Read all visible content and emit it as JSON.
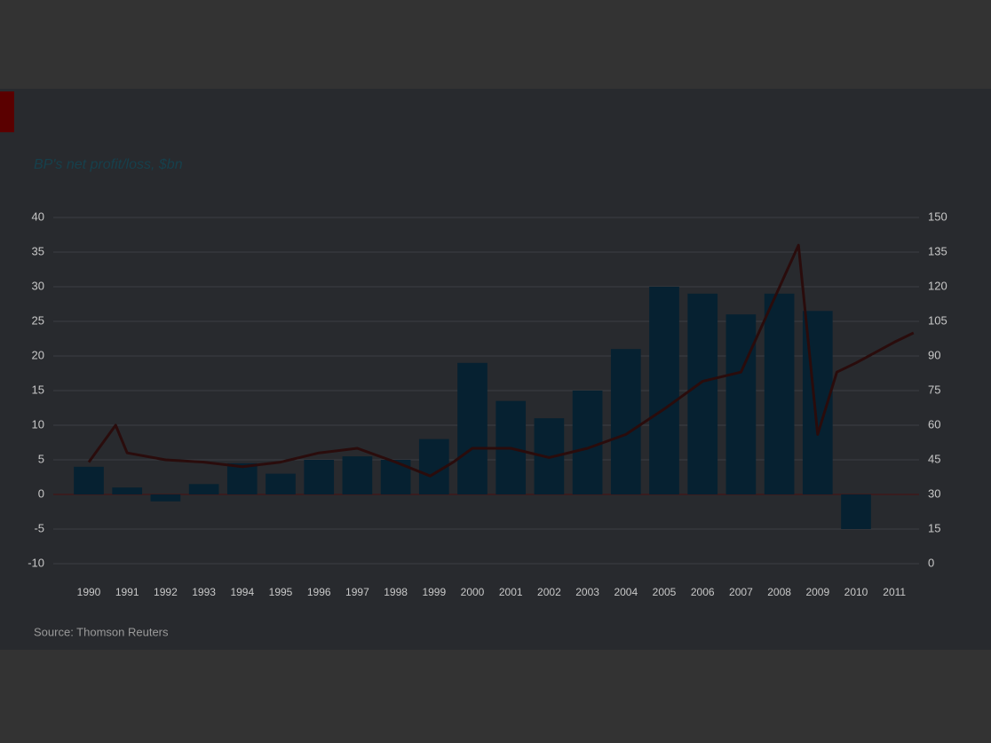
{
  "chart_data": {
    "type": "bar",
    "ylabel": "BP's net profit/loss, $bn",
    "source": "Source: Thomson Reuters",
    "categories": [
      "1990",
      "1991",
      "1992",
      "1993",
      "1994",
      "1995",
      "1996",
      "1997",
      "1998",
      "1999",
      "2000",
      "2001",
      "2002",
      "2003",
      "2004",
      "2005",
      "2006",
      "2007",
      "2008",
      "2009",
      "2010",
      "2011"
    ],
    "ylim": [
      -10,
      40
    ],
    "yticks": [
      -10,
      -5,
      0,
      5,
      10,
      15,
      20,
      25,
      30,
      35,
      40
    ],
    "y2lim": [
      0,
      150
    ],
    "y2ticks": [
      0,
      15,
      30,
      45,
      60,
      75,
      90,
      105,
      120,
      135,
      150
    ],
    "grid": true,
    "series": [
      {
        "type": "bar",
        "color": "#062131",
        "values": [
          4,
          1,
          -1,
          1.5,
          4.5,
          3,
          5,
          5.5,
          5,
          8,
          19,
          13.5,
          11,
          15,
          21,
          30,
          29,
          26,
          29,
          26.5,
          -5,
          null
        ]
      },
      {
        "type": "line",
        "axis": "y2",
        "color": "#2a0c0c",
        "x": [
          1990,
          1990.7,
          1991,
          1992,
          1993,
          1994,
          1995,
          1996,
          1997,
          1998,
          1998.9,
          1999.5,
          2000,
          2001,
          2002,
          2003,
          2004,
          2005,
          2006,
          2007,
          2008.5,
          2009,
          2009.5,
          2010,
          2011,
          2011.5
        ],
        "values": [
          44,
          60,
          48,
          45,
          44,
          42,
          44,
          48,
          50,
          44,
          38,
          44,
          50,
          50,
          46,
          50,
          56,
          67,
          79,
          83,
          138,
          56,
          83,
          87,
          96,
          100
        ]
      }
    ]
  }
}
